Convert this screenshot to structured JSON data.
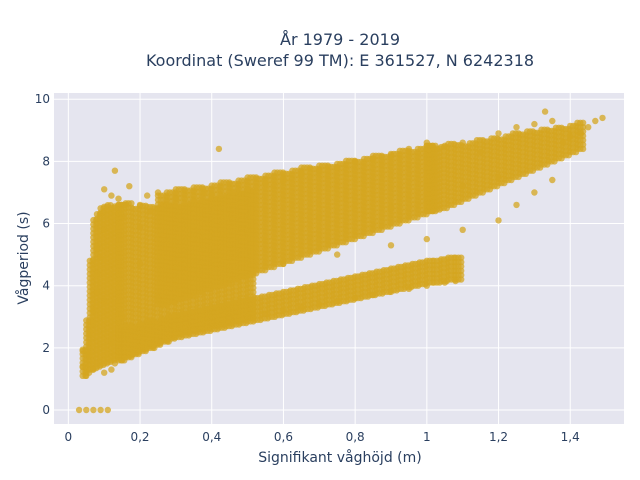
{
  "chart_data": {
    "type": "scatter",
    "title_lines": [
      "År 1979 - 2019",
      "Koordinat (Sweref 99 TM): E 361527, N 6242318"
    ],
    "xlabel": "Signifikant våghöjd (m)",
    "ylabel": "Vågperiod (s)",
    "xlim": [
      -0.04,
      1.55
    ],
    "ylim": [
      -0.45,
      10.2
    ],
    "x_ticks": [
      0,
      0.2,
      0.4,
      0.6,
      0.8,
      1,
      1.2,
      1.4
    ],
    "x_tick_labels": [
      "0",
      "0,2",
      "0,4",
      "0,6",
      "0,8",
      "1",
      "1,2",
      "1,4"
    ],
    "y_ticks": [
      0,
      2,
      4,
      6,
      8,
      10
    ],
    "y_tick_labels": [
      "0",
      "2",
      "4",
      "6",
      "8",
      "10"
    ],
    "grid": true,
    "marker_color": "#d4a520",
    "background_color": "#e5e5ef",
    "series": [
      {
        "points": [
          [
            0.03,
            0.0
          ],
          [
            0.05,
            0.0
          ],
          [
            0.07,
            0.0
          ],
          [
            0.09,
            0.0
          ],
          [
            0.11,
            0.0
          ],
          [
            0.04,
            1.9
          ],
          [
            0.04,
            1.4
          ],
          [
            0.05,
            1.1
          ],
          [
            0.06,
            2.5
          ],
          [
            0.07,
            3.2
          ],
          [
            0.08,
            4.4
          ],
          [
            0.08,
            5.2
          ],
          [
            0.09,
            6.3
          ],
          [
            0.1,
            7.1
          ],
          [
            0.1,
            5.8
          ],
          [
            0.09,
            4.9
          ],
          [
            0.08,
            3.8
          ],
          [
            0.07,
            2.8
          ],
          [
            0.06,
            1.8
          ],
          [
            0.07,
            1.3
          ],
          [
            0.1,
            1.2
          ],
          [
            0.12,
            1.3
          ],
          [
            0.13,
            1.5
          ],
          [
            0.15,
            1.6
          ],
          [
            0.13,
            7.7
          ],
          [
            0.17,
            7.2
          ],
          [
            0.14,
            6.8
          ],
          [
            0.15,
            6.2
          ],
          [
            0.12,
            6.9
          ],
          [
            0.16,
            6.6
          ],
          [
            0.18,
            1.8
          ],
          [
            0.2,
            5.9
          ],
          [
            0.2,
            6.6
          ],
          [
            0.22,
            6.9
          ],
          [
            0.23,
            6.4
          ],
          [
            0.25,
            7.0
          ],
          [
            0.24,
            2.0
          ],
          [
            0.28,
            2.2
          ],
          [
            0.3,
            6.8
          ],
          [
            0.32,
            5.0
          ],
          [
            0.35,
            6.7
          ],
          [
            0.38,
            7.0
          ],
          [
            0.4,
            6.9
          ],
          [
            0.42,
            8.4
          ],
          [
            0.44,
            6.3
          ],
          [
            0.46,
            7.0
          ],
          [
            0.5,
            7.1
          ],
          [
            0.3,
            2.5
          ],
          [
            0.35,
            2.6
          ],
          [
            0.4,
            2.8
          ],
          [
            0.45,
            3.0
          ],
          [
            0.5,
            3.0
          ],
          [
            0.55,
            3.1
          ],
          [
            0.6,
            3.2
          ],
          [
            0.65,
            3.3
          ],
          [
            0.7,
            3.4
          ],
          [
            0.75,
            3.5
          ],
          [
            0.8,
            3.6
          ],
          [
            0.85,
            3.7
          ],
          [
            0.9,
            3.8
          ],
          [
            0.95,
            3.9
          ],
          [
            1.0,
            4.0
          ],
          [
            1.05,
            4.1
          ],
          [
            1.08,
            4.15
          ],
          [
            0.55,
            7.3
          ],
          [
            0.6,
            7.4
          ],
          [
            0.65,
            7.6
          ],
          [
            0.7,
            7.7
          ],
          [
            0.75,
            7.8
          ],
          [
            0.8,
            8.0
          ],
          [
            0.85,
            8.1
          ],
          [
            0.9,
            8.2
          ],
          [
            0.95,
            8.4
          ],
          [
            1.0,
            8.6
          ],
          [
            1.05,
            8.5
          ],
          [
            1.1,
            8.6
          ],
          [
            1.15,
            8.3
          ],
          [
            1.2,
            8.9
          ],
          [
            1.25,
            9.1
          ],
          [
            1.3,
            9.2
          ],
          [
            1.33,
            9.6
          ],
          [
            1.35,
            9.3
          ],
          [
            1.38,
            8.6
          ],
          [
            1.4,
            8.8
          ],
          [
            1.43,
            8.9
          ],
          [
            1.45,
            9.1
          ],
          [
            1.47,
            9.3
          ],
          [
            1.49,
            9.4
          ],
          [
            0.3,
            4.2
          ],
          [
            0.45,
            4.4
          ],
          [
            0.6,
            4.7
          ],
          [
            0.75,
            5.0
          ],
          [
            0.9,
            5.3
          ],
          [
            1.0,
            5.5
          ],
          [
            1.1,
            5.8
          ],
          [
            1.2,
            6.1
          ],
          [
            1.25,
            6.6
          ],
          [
            1.3,
            7.0
          ],
          [
            1.35,
            7.4
          ],
          [
            1.2,
            7.5
          ],
          [
            0.5,
            5.8
          ],
          [
            0.7,
            6.2
          ],
          [
            0.9,
            6.5
          ],
          [
            1.1,
            7.2
          ],
          [
            0.25,
            3.6
          ],
          [
            0.35,
            3.8
          ],
          [
            0.2,
            4.7
          ],
          [
            0.15,
            3.0
          ],
          [
            0.12,
            2.2
          ],
          [
            0.1,
            3.5
          ]
        ]
      }
    ],
    "dense_regions": [
      {
        "x_start": 0.04,
        "x_end": 0.14,
        "x_step": 0.01,
        "low": [
          1.1,
          1.2,
          1.3,
          1.35,
          1.4,
          1.45,
          1.5,
          1.55,
          1.6,
          1.65,
          1.7
        ],
        "high": [
          2.0,
          3.0,
          4.8,
          6.2,
          6.4,
          6.5,
          6.55,
          6.6,
          6.6,
          6.65,
          6.7
        ]
      },
      {
        "x_start": 0.14,
        "x_end": 0.5,
        "x_step": 0.02,
        "low": [
          1.7,
          1.75,
          1.85,
          1.95,
          2.05,
          2.15,
          2.25,
          2.35,
          2.45,
          2.5,
          2.55,
          2.6,
          2.65,
          2.7,
          2.75,
          2.8,
          2.85,
          2.9,
          2.95
        ],
        "high": [
          6.7,
          6.7,
          6.6,
          6.6,
          6.6,
          6.6,
          6.6,
          6.6,
          6.6,
          6.65,
          6.7,
          6.75,
          6.8,
          6.85,
          6.9,
          6.95,
          7.0,
          7.05,
          7.1
        ]
      },
      {
        "x_start": 0.25,
        "x_end": 1.0,
        "x_step": 0.025,
        "low": [
          3.4,
          3.5,
          3.6,
          3.7,
          3.8,
          3.9,
          4.0,
          4.1,
          4.2,
          4.3,
          4.4,
          4.5,
          4.6,
          4.7,
          4.8,
          4.9,
          5.0,
          5.1,
          5.2,
          5.3,
          5.4,
          5.5,
          5.6,
          5.7,
          5.8,
          5.9,
          6.0,
          6.1,
          6.2,
          6.3,
          6.4
        ],
        "high": [
          7.0,
          7.05,
          7.1,
          7.15,
          7.2,
          7.25,
          7.3,
          7.35,
          7.4,
          7.45,
          7.5,
          7.55,
          7.6,
          7.65,
          7.7,
          7.75,
          7.8,
          7.85,
          7.9,
          7.95,
          8.0,
          8.05,
          8.1,
          8.15,
          8.2,
          8.25,
          8.3,
          8.35,
          8.4,
          8.45,
          8.5
        ]
      },
      {
        "x_start": 1.0,
        "x_end": 1.42,
        "x_step": 0.02,
        "low": [
          6.4,
          6.45,
          6.5,
          6.6,
          6.7,
          6.8,
          6.9,
          7.0,
          7.1,
          7.2,
          7.3,
          7.4,
          7.5,
          7.6,
          7.7,
          7.8,
          7.9,
          8.0,
          8.1,
          8.2,
          8.3,
          8.4
        ],
        "high": [
          8.5,
          8.5,
          8.55,
          8.6,
          8.6,
          8.6,
          8.65,
          8.7,
          8.7,
          8.75,
          8.8,
          8.85,
          8.9,
          8.95,
          9.0,
          9.05,
          9.1,
          9.1,
          9.1,
          9.15,
          9.2,
          9.25
        ]
      },
      {
        "x_start": 0.14,
        "x_end": 1.08,
        "x_step": 0.02,
        "low": [
          1.6,
          1.7,
          1.8,
          1.9,
          2.0,
          2.1,
          2.2,
          2.3,
          2.35,
          2.4,
          2.45,
          2.5,
          2.55,
          2.6,
          2.65,
          2.7,
          2.75,
          2.8,
          2.85,
          2.9,
          2.95,
          3.0,
          3.05,
          3.1,
          3.15,
          3.2,
          3.25,
          3.3,
          3.35,
          3.4,
          3.45,
          3.5,
          3.55,
          3.6,
          3.65,
          3.7,
          3.75,
          3.8,
          3.85,
          3.9,
          3.95,
          4.0,
          4.05,
          4.1,
          4.1,
          4.15,
          4.2,
          4.2
        ],
        "high": [
          2.6,
          2.7,
          2.75,
          2.8,
          2.85,
          2.9,
          2.95,
          3.0,
          3.05,
          3.1,
          3.15,
          3.2,
          3.25,
          3.3,
          3.35,
          3.4,
          3.45,
          3.5,
          3.55,
          3.6,
          3.65,
          3.7,
          3.75,
          3.8,
          3.85,
          3.9,
          3.95,
          4.0,
          4.05,
          4.1,
          4.15,
          4.2,
          4.25,
          4.3,
          4.35,
          4.4,
          4.45,
          4.5,
          4.55,
          4.6,
          4.65,
          4.7,
          4.75,
          4.8,
          4.85,
          4.9,
          4.95,
          5.0
        ]
      }
    ]
  }
}
